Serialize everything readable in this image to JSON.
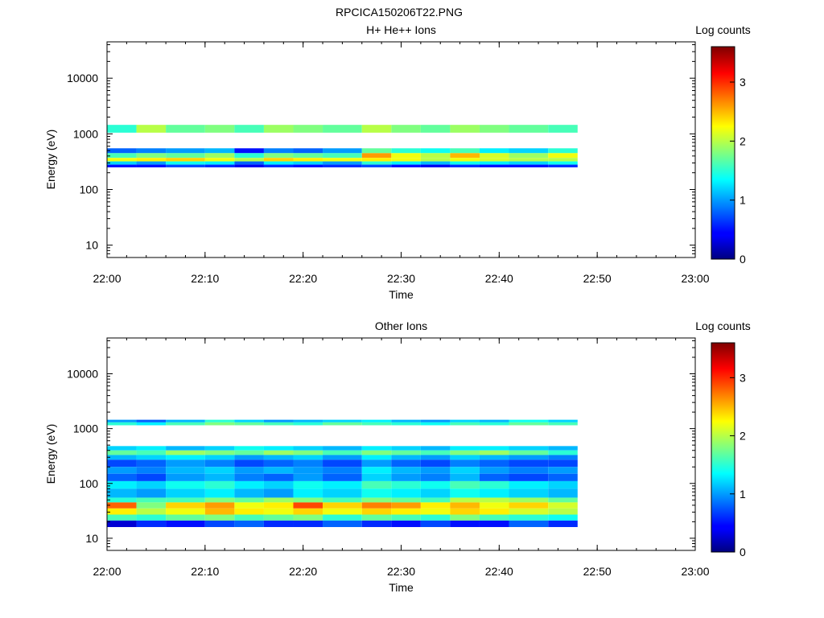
{
  "figure_title": "RPCICA150206T22.PNG",
  "chart_data": [
    {
      "type": "heatmap",
      "title": "H+ He++ Ions",
      "xlabel": "Time",
      "ylabel": "Energy (eV)",
      "yscale": "log",
      "xlim": [
        "22:00",
        "23:00"
      ],
      "ylim": [
        6,
        45000
      ],
      "xticks": [
        "22:00",
        "22:10",
        "22:20",
        "22:30",
        "22:40",
        "22:50",
        "23:00"
      ],
      "yticks": [
        "10",
        "100",
        "1000",
        "10000"
      ],
      "colorbar": {
        "label": "Log counts",
        "range": [
          0,
          3.6
        ],
        "ticks": [
          "0",
          "1",
          "2",
          "3"
        ]
      },
      "time_bins": [
        "22:00",
        "22:03",
        "22:06",
        "22:10",
        "22:13",
        "22:16",
        "22:19",
        "22:22",
        "22:26",
        "22:29",
        "22:32",
        "22:35",
        "22:38",
        "22:41",
        "22:45"
      ],
      "data_end": "22:48",
      "energy_bands": [
        {
          "e": [
            1050,
            1450
          ],
          "v": [
            1.5,
            2.0,
            1.7,
            1.8,
            1.6,
            1.9,
            1.8,
            1.7,
            2.0,
            1.8,
            1.7,
            1.9,
            1.8,
            1.7,
            1.6
          ]
        },
        {
          "e": [
            450,
            550
          ],
          "v": [
            0.8,
            0.9,
            1.0,
            1.1,
            0.5,
            0.9,
            0.8,
            1.0,
            1.7,
            1.5,
            1.4,
            1.6,
            1.3,
            1.2,
            1.5
          ]
        },
        {
          "e": [
            370,
            450
          ],
          "v": [
            1.6,
            1.8,
            1.7,
            1.9,
            1.5,
            1.8,
            1.7,
            1.6,
            2.6,
            2.2,
            2.0,
            2.5,
            2.1,
            1.9,
            2.2
          ]
        },
        {
          "e": [
            320,
            370
          ],
          "v": [
            2.2,
            2.3,
            2.4,
            2.2,
            2.0,
            2.4,
            2.3,
            2.2,
            2.3,
            2.2,
            2.0,
            2.2,
            2.1,
            2.0,
            2.0
          ]
        },
        {
          "e": [
            280,
            320
          ],
          "v": [
            1.2,
            1.0,
            1.4,
            1.3,
            0.8,
            1.3,
            1.2,
            1.0,
            1.5,
            1.3,
            1.1,
            1.4,
            1.3,
            1.2,
            1.4
          ]
        },
        {
          "e": [
            250,
            280
          ],
          "v": [
            0.5,
            0.5,
            0.7,
            0.6,
            0.4,
            0.6,
            0.5,
            0.6,
            0.7,
            0.5,
            0.4,
            0.6,
            0.5,
            0.5,
            0.6
          ]
        }
      ]
    },
    {
      "type": "heatmap",
      "title": "Other Ions",
      "xlabel": "Time",
      "ylabel": "Energy (eV)",
      "yscale": "log",
      "xlim": [
        "22:00",
        "23:00"
      ],
      "ylim": [
        6,
        45000
      ],
      "xticks": [
        "22:00",
        "22:10",
        "22:20",
        "22:30",
        "22:40",
        "22:50",
        "23:00"
      ],
      "yticks": [
        "10",
        "100",
        "1000",
        "10000"
      ],
      "colorbar": {
        "label": "Log counts",
        "range": [
          0,
          3.6
        ],
        "ticks": [
          "0",
          "1",
          "2",
          "3"
        ]
      },
      "time_bins": [
        "22:00",
        "22:03",
        "22:06",
        "22:10",
        "22:13",
        "22:16",
        "22:19",
        "22:22",
        "22:26",
        "22:29",
        "22:32",
        "22:35",
        "22:38",
        "22:41",
        "22:45"
      ],
      "data_end": "22:48",
      "energy_bands": [
        {
          "e": [
            1300,
            1450
          ],
          "v": [
            1.0,
            0.8,
            1.1,
            1.5,
            1.2,
            1.0,
            1.1,
            1.2,
            1.3,
            1.1,
            1.0,
            1.2,
            1.1,
            1.4,
            1.2
          ]
        },
        {
          "e": [
            1150,
            1300
          ],
          "v": [
            1.5,
            1.3,
            1.6,
            1.8,
            1.7,
            1.6,
            1.5,
            1.7,
            1.6,
            1.5,
            1.4,
            1.6,
            1.5,
            1.7,
            1.6
          ]
        },
        {
          "e": [
            400,
            480
          ],
          "v": [
            1.2,
            1.3,
            1.1,
            1.2,
            1.4,
            1.3,
            1.2,
            1.1,
            1.3,
            1.2,
            1.1,
            1.3,
            1.3,
            1.2,
            1.1
          ]
        },
        {
          "e": [
            330,
            400
          ],
          "v": [
            1.7,
            1.6,
            1.9,
            1.8,
            1.7,
            1.9,
            1.8,
            1.6,
            1.8,
            1.7,
            1.6,
            1.8,
            1.9,
            1.7,
            1.5
          ]
        },
        {
          "e": [
            270,
            330
          ],
          "v": [
            1.1,
            1.2,
            1.3,
            1.2,
            1.0,
            1.1,
            1.2,
            1.0,
            1.3,
            1.1,
            1.0,
            1.2,
            1.1,
            1.0,
            0.9
          ]
        },
        {
          "e": [
            200,
            270
          ],
          "v": [
            0.7,
            0.8,
            1.0,
            0.9,
            0.7,
            0.8,
            0.9,
            0.7,
            1.0,
            0.8,
            0.7,
            0.9,
            0.8,
            0.7,
            0.7
          ]
        },
        {
          "e": [
            150,
            200
          ],
          "v": [
            1.0,
            0.9,
            1.1,
            1.2,
            1.0,
            1.1,
            1.0,
            0.9,
            1.3,
            1.1,
            1.0,
            1.2,
            1.0,
            0.9,
            1.0
          ]
        },
        {
          "e": [
            110,
            150
          ],
          "v": [
            0.8,
            0.7,
            1.0,
            1.1,
            0.9,
            0.8,
            1.0,
            0.8,
            1.2,
            1.0,
            0.9,
            1.1,
            0.8,
            0.7,
            0.8
          ]
        },
        {
          "e": [
            80,
            110
          ],
          "v": [
            1.3,
            1.2,
            1.4,
            1.5,
            1.3,
            1.2,
            1.4,
            1.3,
            1.6,
            1.5,
            1.4,
            1.6,
            1.5,
            1.3,
            1.2
          ]
        },
        {
          "e": [
            55,
            80
          ],
          "v": [
            1.1,
            1.0,
            1.2,
            1.3,
            1.1,
            1.0,
            1.3,
            1.2,
            1.4,
            1.3,
            1.2,
            1.4,
            1.3,
            1.2,
            1.1
          ]
        },
        {
          "e": [
            45,
            55
          ],
          "v": [
            1.5,
            1.6,
            1.6,
            1.8,
            1.7,
            1.9,
            1.8,
            1.6,
            1.8,
            1.7,
            1.6,
            2.0,
            2.0,
            1.9,
            1.7
          ]
        },
        {
          "e": [
            35,
            45
          ],
          "v": [
            2.8,
            1.8,
            2.4,
            2.6,
            2.2,
            2.3,
            2.9,
            2.4,
            2.7,
            2.6,
            2.3,
            2.5,
            2.2,
            2.4,
            2.1
          ]
        },
        {
          "e": [
            27,
            35
          ],
          "v": [
            2.3,
            2.0,
            2.2,
            2.5,
            2.3,
            2.2,
            2.4,
            2.2,
            2.4,
            2.3,
            2.2,
            2.4,
            2.3,
            2.1,
            2.0
          ]
        },
        {
          "e": [
            21,
            27
          ],
          "v": [
            1.6,
            1.5,
            1.7,
            1.8,
            1.6,
            1.7,
            1.8,
            1.5,
            1.7,
            1.6,
            1.5,
            1.8,
            1.6,
            1.5,
            1.4
          ]
        },
        {
          "e": [
            16,
            21
          ],
          "v": [
            0.3,
            0.6,
            0.5,
            0.7,
            0.8,
            0.6,
            0.6,
            0.8,
            0.6,
            0.5,
            0.7,
            0.5,
            0.5,
            0.8,
            0.6
          ]
        }
      ]
    }
  ]
}
